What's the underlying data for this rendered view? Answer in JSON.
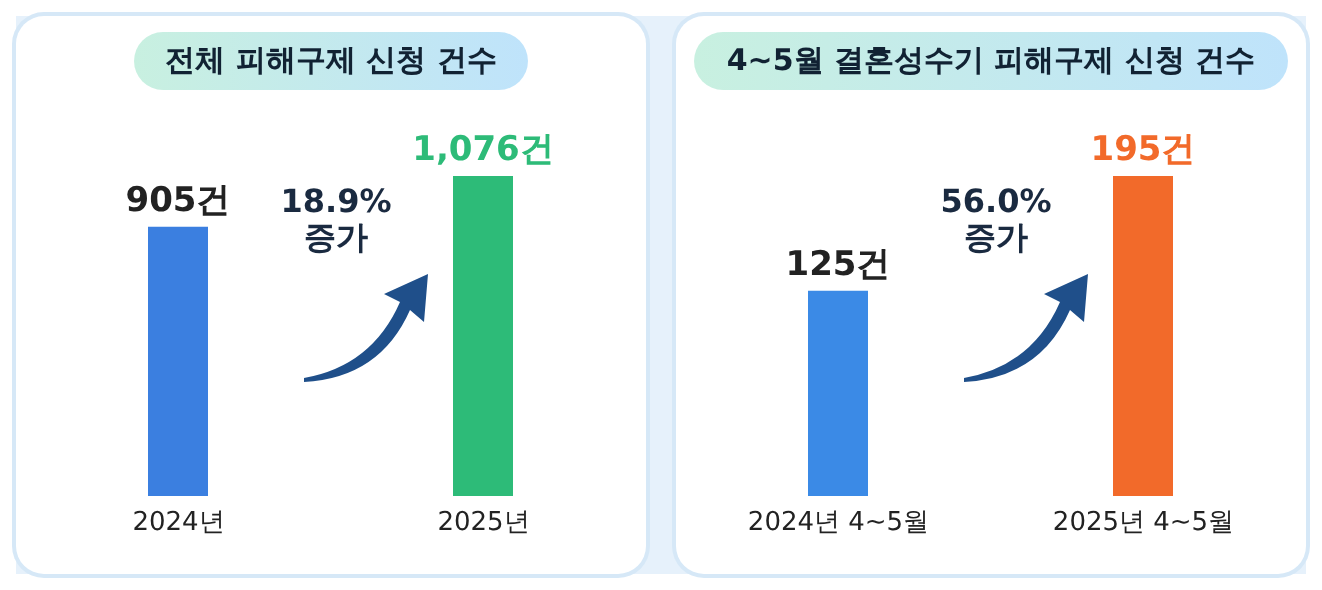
{
  "chart_data": [
    {
      "type": "bar",
      "title": "전체 피해구제 신청 건수",
      "categories": [
        "2024년",
        "2025년"
      ],
      "values": [
        905,
        1076
      ],
      "colors": [
        "#3b7fe0",
        "#2dbb78"
      ],
      "value_labels": [
        "905건",
        "1,076건"
      ],
      "annotations": [
        "18.9%\n증가"
      ]
    },
    {
      "type": "bar",
      "title": "4~5월 결혼성수기 피해구제 신청 건수",
      "categories": [
        "2024년 4~5월",
        "2025년 4~5월"
      ],
      "values": [
        125,
        195
      ],
      "colors": [
        "#3b8ae6",
        "#f26a2a"
      ],
      "value_labels": [
        "125건",
        "195건"
      ],
      "annotations": [
        "56.0%\n증가"
      ]
    }
  ]
}
